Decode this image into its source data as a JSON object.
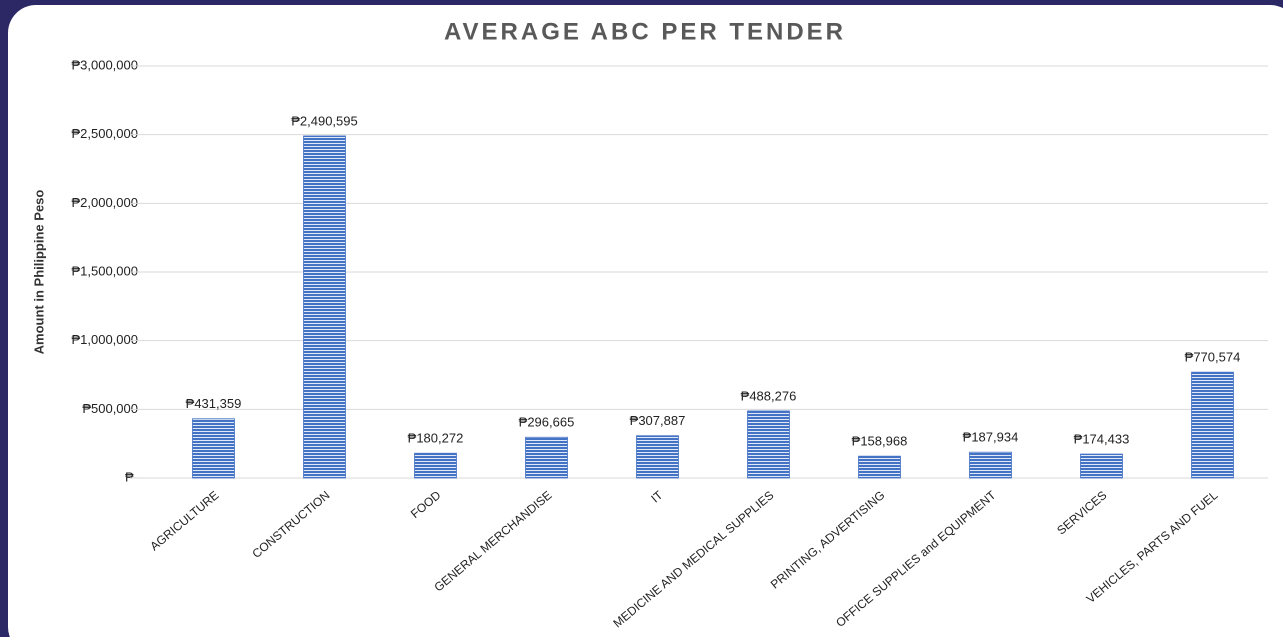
{
  "chart_data": {
    "type": "bar",
    "title": "AVERAGE ABC PER TENDER",
    "y_label": "Amount in Philippine Peso",
    "categories": [
      "AGRICULTURE",
      "CONSTRUCTION",
      "FOOD",
      "GENERAL MERCHANDISE",
      "IT",
      "MEDICINE AND MEDICAL SUPPLIES",
      "PRINTING, ADVERTISING",
      "OFFICE SUPPLIES and EQUIPMENT",
      "SERVICES",
      "VEHICLES, PARTS AND FUEL"
    ],
    "values": [
      431359,
      2490595,
      180272,
      296665,
      307887,
      488276,
      158968,
      187934,
      174433,
      770574
    ],
    "value_labels": [
      "₱431,359",
      "₱2,490,595",
      "₱180,272",
      "₱296,665",
      "₱307,887",
      "₱488,276",
      "₱158,968",
      "₱187,934",
      "₱174,433",
      "₱770,574"
    ],
    "color": "#4472c4",
    "ylim": [
      0,
      3000000
    ],
    "yticks": [
      {
        "value": 0,
        "label": "₱-"
      },
      {
        "value": 500000,
        "label": "₱500,000"
      },
      {
        "value": 1000000,
        "label": "₱1,000,000"
      },
      {
        "value": 1500000,
        "label": "₱1,500,000"
      },
      {
        "value": 2000000,
        "label": "₱2,000,000"
      },
      {
        "value": 2500000,
        "label": "₱2,500,000"
      },
      {
        "value": 3000000,
        "label": "₱3,000,000"
      }
    ],
    "grid": true
  }
}
